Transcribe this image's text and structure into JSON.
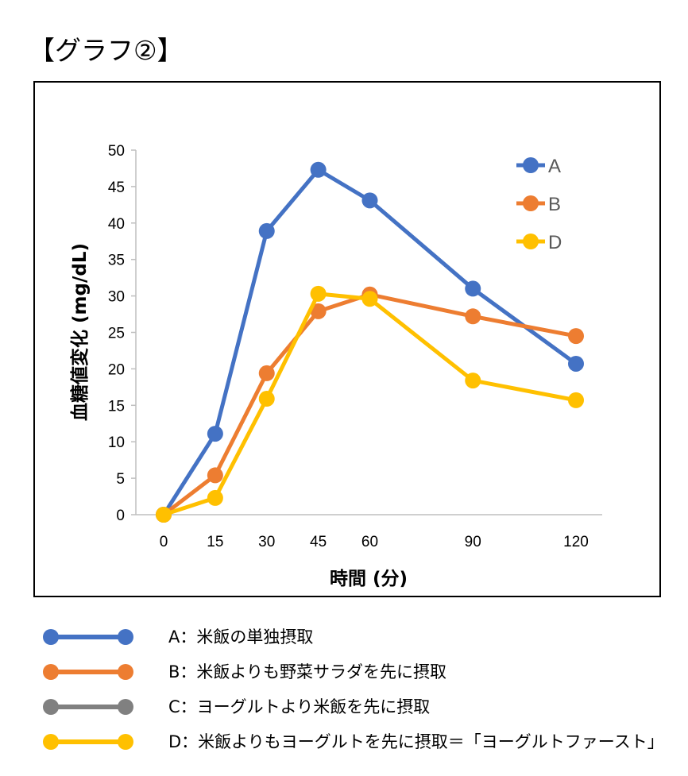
{
  "heading": "【グラフ②】",
  "chart_data": {
    "type": "line",
    "ylabel": "血糖値変化 (mg/dL)",
    "xlabel": "時間 (分)",
    "x": [
      0,
      15,
      30,
      45,
      60,
      90,
      120
    ],
    "x_ticks": [
      "0",
      "15",
      "30",
      "45",
      "60",
      "90",
      "120"
    ],
    "y_ticks": [
      "0",
      "5",
      "10",
      "15",
      "20",
      "25",
      "30",
      "35",
      "40",
      "45",
      "50"
    ],
    "xlim": [
      0,
      120
    ],
    "ylim": [
      0,
      50
    ],
    "grid": false,
    "legend_position": "top-right",
    "series": [
      {
        "name": "A",
        "color": "#4472C4",
        "values": [
          0,
          11.1,
          38.9,
          47.3,
          43.1,
          31.0,
          20.7
        ]
      },
      {
        "name": "B",
        "color": "#ED7D31",
        "values": [
          0,
          5.4,
          19.4,
          27.9,
          30.2,
          27.2,
          24.5
        ]
      },
      {
        "name": "D",
        "color": "#FFC000",
        "values": [
          0,
          2.3,
          15.9,
          30.3,
          29.6,
          18.4,
          15.7
        ]
      }
    ]
  },
  "bottom_legend": [
    {
      "color": "#4472C4",
      "label": "A：米飯の単独摂取"
    },
    {
      "color": "#ED7D31",
      "label": "B：米飯よりも野菜サラダを先に摂取"
    },
    {
      "color": "#808080",
      "label": "C：ヨーグルトより米飯を先に摂取"
    },
    {
      "color": "#FFC000",
      "label": "D：米飯よりもヨーグルトを先に摂取＝「ヨーグルトファースト」"
    }
  ]
}
